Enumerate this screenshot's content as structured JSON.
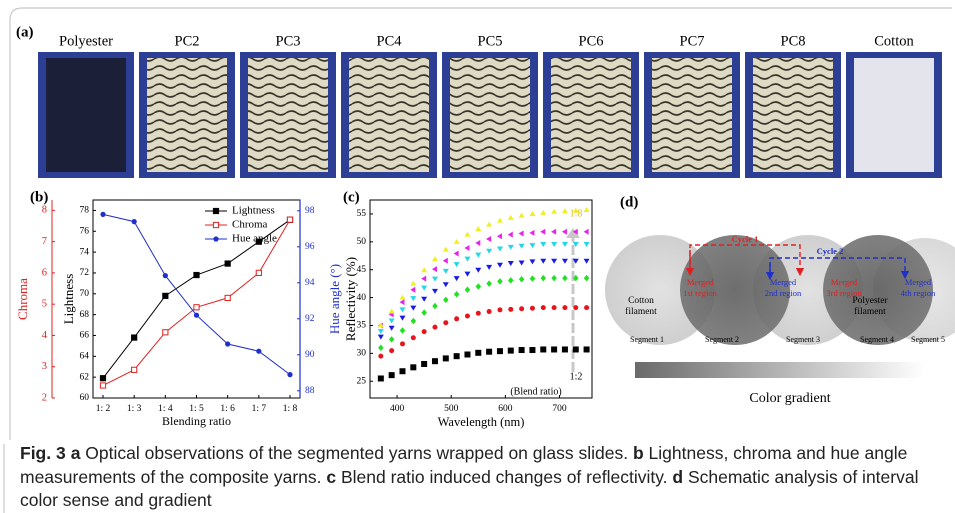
{
  "panel_labels": [
    "(a)",
    "(b)",
    "(c)",
    "(d)"
  ],
  "panel_a": {
    "samples": [
      "Polyester",
      "PC2",
      "PC3",
      "PC4",
      "PC5",
      "PC6",
      "PC7",
      "PC8",
      "Cotton"
    ]
  },
  "chart_data": [
    {
      "type": "line",
      "x_label": "Blending ratio",
      "y_label": "Lightness",
      "y2_label": "Hue angle (°)",
      "y3_label": "Chroma",
      "categories": [
        "1: 2",
        "1: 3",
        "1: 4",
        "1: 5",
        "1: 6",
        "1: 7",
        "1: 8"
      ],
      "ylim": [
        60,
        79
      ],
      "yticks": [
        60,
        62,
        64,
        66,
        68,
        70,
        72,
        74,
        76,
        78
      ],
      "y2lim": [
        87.6,
        98.6
      ],
      "y2ticks": [
        88,
        90,
        92,
        94,
        96,
        98
      ],
      "y3lim": [
        2,
        8.33
      ],
      "y3ticks": [
        2,
        3,
        4,
        5,
        6,
        7,
        8
      ],
      "legend": "top-right",
      "series": [
        {
          "name": "Lightness",
          "color": "#000000",
          "marker": "square",
          "values": [
            61.9,
            65.8,
            69.8,
            71.8,
            72.9,
            75.0,
            77.1
          ]
        },
        {
          "name": "Chroma",
          "color": "#e02020",
          "marker": "open-square",
          "axis": "y3",
          "values": [
            2.4,
            2.9,
            4.1,
            4.9,
            5.2,
            6.0,
            7.7
          ]
        },
        {
          "name": "Hue angle",
          "color": "#1f2fc8",
          "marker": "circle",
          "axis": "y2",
          "values": [
            97.8,
            97.4,
            94.4,
            92.2,
            90.6,
            90.2,
            88.9
          ]
        }
      ]
    },
    {
      "type": "scatter",
      "x_label": "Wavelength (nm)",
      "y_label": "Reflectivity (%)",
      "x": [
        370,
        390,
        410,
        430,
        450,
        470,
        490,
        510,
        530,
        550,
        570,
        590,
        610,
        630,
        650,
        670,
        690,
        710,
        730,
        750
      ],
      "xlim": [
        350,
        760
      ],
      "xticks": [
        400,
        500,
        600,
        700
      ],
      "ylim": [
        22,
        57.5
      ],
      "yticks": [
        25,
        30,
        35,
        40,
        45,
        50,
        55
      ],
      "annotations": [
        "1:8",
        "1:2",
        "(Blend ratio)"
      ],
      "series": [
        {
          "color": "#000000",
          "marker": "square",
          "values": [
            25.5,
            26.1,
            26.8,
            27.5,
            28.1,
            28.6,
            29.1,
            29.5,
            29.8,
            30.1,
            30.3,
            30.4,
            30.5,
            30.6,
            30.6,
            30.7,
            30.7,
            30.7,
            30.7,
            30.7
          ]
        },
        {
          "color": "#e8141c",
          "marker": "circle",
          "values": [
            29.5,
            30.5,
            31.7,
            32.8,
            33.9,
            34.7,
            35.5,
            36.2,
            36.7,
            37.2,
            37.5,
            37.8,
            37.9,
            38.0,
            38.1,
            38.2,
            38.2,
            38.2,
            38.2,
            38.2
          ]
        },
        {
          "color": "#22e022",
          "marker": "diamond",
          "values": [
            31.0,
            32.5,
            34.1,
            35.8,
            37.3,
            38.5,
            39.6,
            40.6,
            41.4,
            42.0,
            42.5,
            42.9,
            43.1,
            43.3,
            43.4,
            43.5,
            43.5,
            43.5,
            43.5,
            43.5
          ]
        },
        {
          "color": "#1a1ae8",
          "marker": "tri-down",
          "values": [
            33.0,
            34.6,
            36.4,
            38.2,
            39.8,
            41.2,
            42.4,
            43.5,
            44.3,
            45.0,
            45.5,
            45.9,
            46.2,
            46.3,
            46.5,
            46.6,
            46.6,
            46.6,
            46.6,
            46.6
          ]
        },
        {
          "color": "#22d8e8",
          "marker": "tri-down",
          "values": [
            34.0,
            35.9,
            37.9,
            39.9,
            41.8,
            43.4,
            44.8,
            46.0,
            47.0,
            47.7,
            48.4,
            48.8,
            49.1,
            49.3,
            49.4,
            49.6,
            49.6,
            49.6,
            49.6,
            49.6
          ]
        },
        {
          "color": "#e822e8",
          "marker": "tri-left",
          "values": [
            35.0,
            37.0,
            39.2,
            41.4,
            43.4,
            45.1,
            46.6,
            47.9,
            48.9,
            49.8,
            50.5,
            51.0,
            51.3,
            51.5,
            51.6,
            51.8,
            51.8,
            51.8,
            51.8,
            51.8
          ]
        },
        {
          "color": "#f0f020",
          "marker": "tri-up",
          "values": [
            35.0,
            37.5,
            40.0,
            42.5,
            44.9,
            46.9,
            48.6,
            50.0,
            51.3,
            52.3,
            53.1,
            53.8,
            54.3,
            54.7,
            55.0,
            55.2,
            55.4,
            55.5,
            55.6,
            55.7
          ]
        }
      ]
    }
  ],
  "panel_d": {
    "cycles": [
      "Cycle 1",
      "Cycle 2"
    ],
    "regions": [
      [
        "Merged",
        "1st region"
      ],
      [
        "Merged",
        "2nd region"
      ],
      [
        "Merged",
        "3rd region"
      ],
      [
        "Merged",
        "4th region"
      ]
    ],
    "filaments": [
      [
        "Cotton",
        "filament"
      ],
      [
        "Polyester",
        "filament"
      ]
    ],
    "segments": [
      "Segment 1",
      "Segment 2",
      "Segment 3",
      "Segment 4",
      "Segment 5"
    ],
    "gradient_label": "Color gradient"
  },
  "caption": [
    {
      "text": "Fig. 3",
      "bold": true
    },
    {
      "text": "a",
      "bold": true
    },
    {
      "text": " Optical observations of the segmented yarns wrapped on glass slides. "
    },
    {
      "text": "b",
      "bold": true
    },
    {
      "text": " Lightness, chroma and hue angle measurements of the composite yarns. "
    },
    {
      "text": "c",
      "bold": true
    },
    {
      "text": " Blend ratio induced changes of reflectivity. "
    },
    {
      "text": "d",
      "bold": true
    },
    {
      "text": " Schematic analysis of interval color sense and gradient"
    }
  ]
}
